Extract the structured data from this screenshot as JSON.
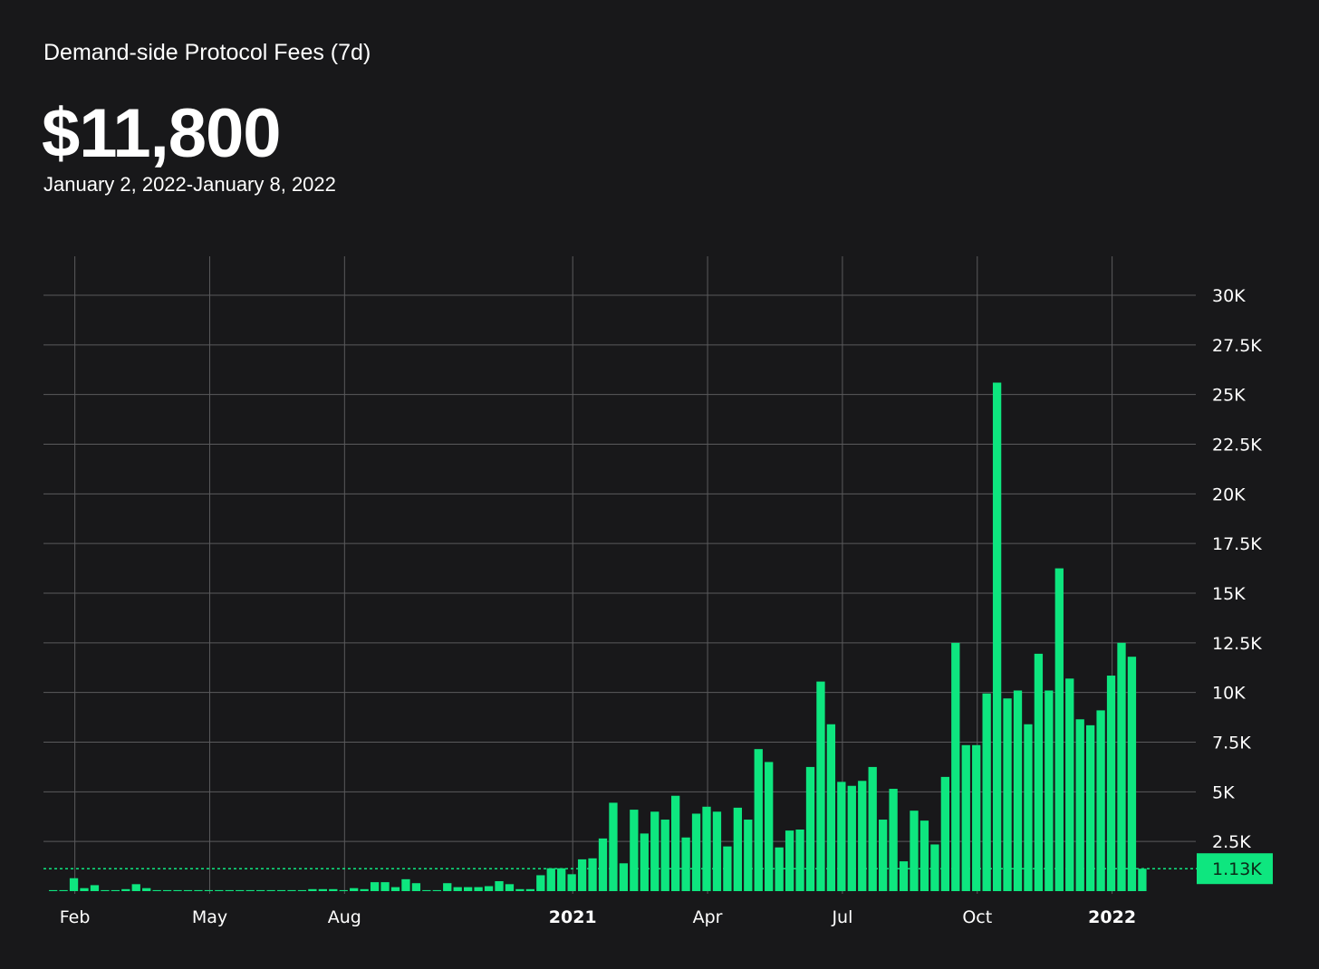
{
  "header": {
    "title": "Demand-side Protocol Fees (7d)",
    "value": "$11,800",
    "date_range": "January 2, 2022-January 8, 2022"
  },
  "colors": {
    "background": "#18181a",
    "bar": "#0ee67f",
    "grid": "#5a5a5c",
    "text": "#ffffff",
    "marker_text": "#0b2a18"
  },
  "chart_data": {
    "type": "bar",
    "title": "Demand-side Protocol Fees (7d)",
    "ylim": [
      0,
      30000
    ],
    "yticks": [
      {
        "value": 2500,
        "label": "2.5K"
      },
      {
        "value": 5000,
        "label": "5K"
      },
      {
        "value": 7500,
        "label": "7.5K"
      },
      {
        "value": 10000,
        "label": "10K"
      },
      {
        "value": 12500,
        "label": "12.5K"
      },
      {
        "value": 15000,
        "label": "15K"
      },
      {
        "value": 17500,
        "label": "17.5K"
      },
      {
        "value": 20000,
        "label": "20K"
      },
      {
        "value": 22500,
        "label": "22.5K"
      },
      {
        "value": 25000,
        "label": "25K"
      },
      {
        "value": 27500,
        "label": "27.5K"
      },
      {
        "value": 30000,
        "label": "30K"
      }
    ],
    "xticks": [
      {
        "label": "Feb",
        "index": 2.5,
        "bold": false
      },
      {
        "label": "May",
        "index": 15.5,
        "bold": false
      },
      {
        "label": "Aug",
        "index": 28.5,
        "bold": false
      },
      {
        "label": "2021",
        "index": 50.5,
        "bold": true
      },
      {
        "label": "Apr",
        "index": 63.5,
        "bold": false
      },
      {
        "label": "Jul",
        "index": 76.5,
        "bold": false
      },
      {
        "label": "Oct",
        "index": 89.5,
        "bold": false
      },
      {
        "label": "2022",
        "index": 102.5,
        "bold": true
      }
    ],
    "reference": {
      "value": 1130,
      "label": "1.13K"
    },
    "grid": true,
    "values": [
      50,
      50,
      650,
      150,
      300,
      50,
      50,
      100,
      350,
      150,
      50,
      50,
      50,
      50,
      50,
      50,
      50,
      50,
      50,
      50,
      50,
      50,
      50,
      50,
      50,
      100,
      100,
      100,
      50,
      150,
      100,
      450,
      450,
      200,
      600,
      400,
      50,
      50,
      400,
      200,
      200,
      200,
      250,
      500,
      350,
      100,
      100,
      800,
      1150,
      1150,
      850,
      1600,
      1650,
      2650,
      4450,
      1400,
      4100,
      2900,
      4000,
      3600,
      4800,
      2700,
      3900,
      4250,
      4000,
      2250,
      4200,
      3600,
      7150,
      6500,
      2200,
      3050,
      3100,
      6250,
      10550,
      8400,
      5500,
      5300,
      5550,
      6250,
      3600,
      5150,
      1500,
      4050,
      3550,
      2350,
      5750,
      12500,
      7350,
      7350,
      9950,
      25600,
      9700,
      10100,
      8400,
      11950,
      10100,
      16250,
      10700,
      8650,
      8350,
      9100,
      10850,
      12500,
      11800,
      1130
    ]
  }
}
